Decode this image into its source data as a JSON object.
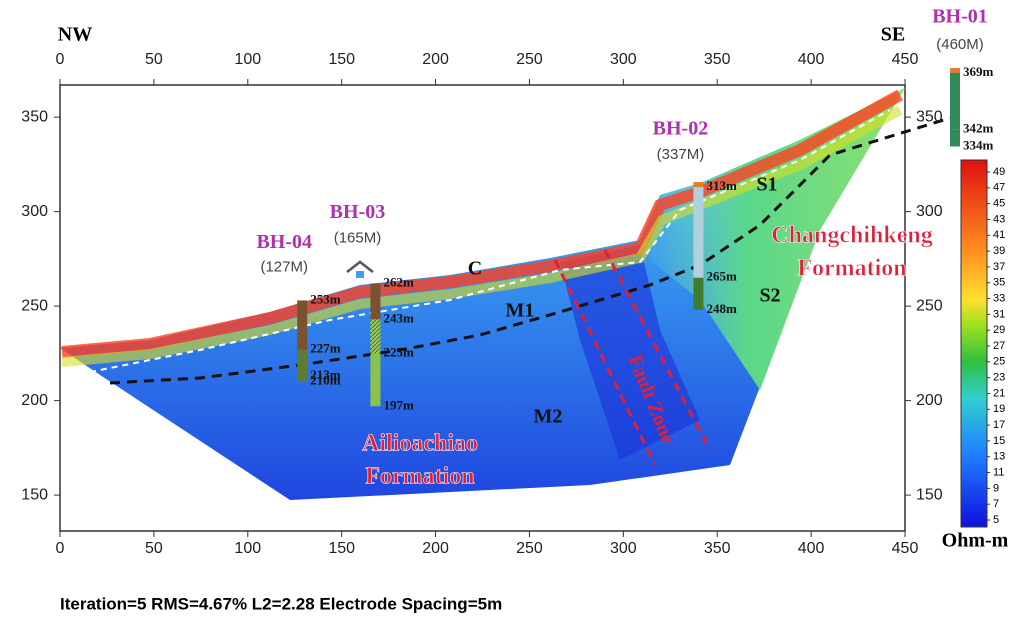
{
  "chart_data": {
    "type": "resistivity-section",
    "direction_left": "NW",
    "direction_right": "SE",
    "xlim": [
      0,
      450
    ],
    "xticks": [
      0,
      50,
      100,
      150,
      200,
      250,
      300,
      350,
      400,
      450
    ],
    "ylim": [
      131,
      367
    ],
    "yticks": [
      150,
      200,
      250,
      300,
      350
    ],
    "colorbar": {
      "label": "Ohm-m",
      "ticks": [
        49,
        47,
        45,
        43,
        41,
        39,
        37,
        35,
        33,
        31,
        29,
        27,
        25,
        23,
        21,
        19,
        17,
        15,
        13,
        11,
        9,
        7,
        5
      ]
    },
    "boreholes": [
      {
        "name": "BH-04",
        "length": "(127M)",
        "x": 129,
        "depths": [
          {
            "value": 253,
            "label": "253m"
          },
          {
            "value": 227,
            "label": "227m"
          },
          {
            "value": 213,
            "label": "213m"
          },
          {
            "value": 210,
            "label": "210m"
          }
        ]
      },
      {
        "name": "BH-03",
        "length": "(165M)",
        "x": 168,
        "depths": [
          {
            "value": 262,
            "label": "262m"
          },
          {
            "value": 243,
            "label": "243m"
          },
          {
            "value": 225,
            "label": "225m"
          },
          {
            "value": 197,
            "label": "197m"
          }
        ]
      },
      {
        "name": "BH-02",
        "length": "(337M)",
        "x": 340,
        "depths": [
          {
            "value": 313,
            "label": "313m"
          },
          {
            "value": 265,
            "label": "265m"
          },
          {
            "value": 248,
            "label": "248m"
          }
        ]
      },
      {
        "name": "BH-01",
        "length": "(460M)",
        "x": 477,
        "depths": [
          {
            "value": 369,
            "label": "369m"
          },
          {
            "value": 342,
            "label": "342m"
          },
          {
            "value": 334,
            "label": "334m"
          }
        ]
      }
    ],
    "zone_labels": [
      "M1",
      "M2",
      "S1",
      "S2",
      "C",
      "Fault Zone"
    ],
    "formations": [
      [
        "Ailioachiao",
        "Formation"
      ],
      [
        "Changchihkeng",
        "Formation"
      ]
    ],
    "footer": "Iteration=5  RMS=4.67%  L2=2.28  Electrode Spacing=5m"
  }
}
